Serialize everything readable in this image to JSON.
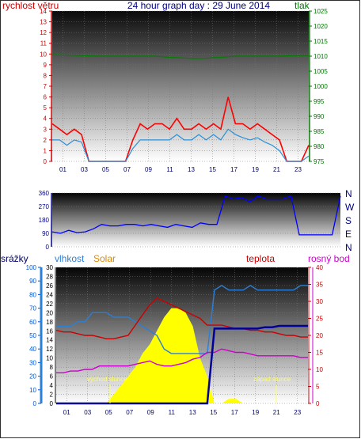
{
  "page": {
    "title": "24 hour graph day : 29 June 2014"
  },
  "chart_data": [
    {
      "id": "wind_pressure",
      "type": "line",
      "title": "24 hour graph day : 29 June 2014",
      "left_axis_label": "rychlost větru",
      "right_axis_label": "tlak",
      "left_axis": {
        "ylim": [
          0,
          14
        ],
        "ticks": [
          0,
          1,
          2,
          3,
          4,
          5,
          6,
          7,
          8,
          9,
          10,
          11,
          12,
          13,
          14
        ],
        "color": "#cc0000"
      },
      "right_axis": {
        "ylim": [
          975,
          1025
        ],
        "ticks": [
          975,
          980,
          985,
          990,
          995,
          1000,
          1005,
          1010,
          1015,
          1020,
          1025
        ],
        "color": "#007700"
      },
      "x_ticks": [
        "01",
        "03",
        "05",
        "07",
        "09",
        "11",
        "13",
        "15",
        "17",
        "19",
        "21",
        "23"
      ],
      "grid": true,
      "series": [
        {
          "key": "gust",
          "color": "#ff0000",
          "values": [
            3.5,
            3,
            2.5,
            3,
            2.5,
            0,
            0,
            0,
            0,
            0,
            0,
            2,
            3.5,
            3,
            3.5,
            3.5,
            3,
            4,
            3,
            3,
            3.5,
            3,
            3.5,
            3,
            6,
            3.5,
            3.5,
            3,
            3.5,
            3,
            2.5,
            2,
            0,
            0,
            0,
            1.5
          ]
        },
        {
          "key": "speed",
          "color": "#2b8fd6",
          "values": [
            2,
            2,
            1.5,
            2,
            1.8,
            0,
            0,
            0,
            0,
            0,
            0,
            1.2,
            2,
            2,
            2,
            2,
            2,
            2.5,
            2,
            2,
            2.5,
            2,
            2.5,
            2,
            3,
            2.5,
            2.2,
            2,
            2.2,
            1.8,
            1.5,
            1,
            0,
            0,
            0,
            0.5
          ]
        },
        {
          "key": "pressure",
          "color": "#008000",
          "axis": "right",
          "values": [
            1010.5,
            1010.5,
            1010.4,
            1010.3,
            1010.2,
            1010.1,
            1010,
            1010,
            1010,
            1010,
            1010,
            1010,
            1010,
            1010,
            1010,
            1009.8,
            1009.6,
            1009.5,
            1009.4,
            1009.2,
            1009.2,
            1009.3,
            1009.5,
            1009.6,
            1009.8,
            1010,
            1010,
            1010,
            1010,
            1010,
            1010,
            1010,
            1010.1,
            1010.2,
            1010.2,
            1010.2
          ]
        }
      ]
    },
    {
      "id": "direction",
      "type": "line",
      "left_axis": {
        "ylim": [
          0,
          360
        ],
        "ticks": [
          0,
          90,
          180,
          270,
          360
        ],
        "color": "#000088"
      },
      "right_axis_labels": [
        "N",
        "W",
        "S",
        "E",
        "N"
      ],
      "series": [
        {
          "key": "direction",
          "color": "#0000ff",
          "values": [
            100,
            90,
            110,
            95,
            100,
            120,
            150,
            140,
            140,
            150,
            150,
            140,
            150,
            140,
            130,
            150,
            140,
            130,
            160,
            150,
            150,
            340,
            320,
            330,
            300,
            340,
            320,
            320,
            320,
            340,
            80,
            80,
            80,
            80,
            80,
            340
          ]
        }
      ]
    },
    {
      "id": "humidity_temp",
      "type": "line",
      "left_axis_labels": [
        "srážky",
        "vlhkost",
        "Solar"
      ],
      "right_axis_labels": [
        "teplota",
        "rosný bod"
      ],
      "rain_axis": {
        "ylim": [
          0,
          100
        ],
        "ticks": [
          0,
          10,
          20,
          30,
          40,
          50,
          60,
          70,
          80,
          90,
          100
        ],
        "color": "#0055cc"
      },
      "humidity_axis": {
        "ylim": [
          0,
          30
        ],
        "ticks": [
          0,
          2,
          4,
          6,
          8,
          10,
          12,
          14,
          16,
          18,
          20,
          22,
          24,
          26,
          28,
          30
        ],
        "color": "#000000"
      },
      "temp_axis": {
        "ylim": [
          0,
          40
        ],
        "ticks": [
          0,
          5,
          10,
          15,
          20,
          25,
          30,
          35,
          40
        ],
        "color": "#cc0000"
      },
      "x_ticks": [
        "01",
        "03",
        "05",
        "07",
        "09",
        "11",
        "13",
        "15",
        "17",
        "19",
        "21",
        "23"
      ],
      "annotations": [
        "východ slunce",
        "západ slunce"
      ],
      "series": [
        {
          "key": "humidity",
          "color": "#2b7fd8",
          "values": [
            17,
            17,
            17,
            18,
            18,
            20,
            20,
            20,
            19,
            19,
            19,
            18,
            17,
            16,
            15,
            12,
            11,
            11,
            11,
            11,
            11,
            11,
            25,
            26,
            25,
            25,
            25,
            26,
            25,
            25,
            25,
            25,
            25,
            25,
            26,
            26
          ]
        },
        {
          "key": "temperature",
          "color": "#cc0000",
          "values": [
            21.5,
            21,
            21,
            20.5,
            20,
            20,
            19.5,
            19,
            19,
            19.5,
            20,
            23,
            26,
            29,
            31,
            30,
            29,
            28,
            27,
            26,
            25,
            23,
            23,
            23,
            22.5,
            22,
            22,
            21.5,
            21.5,
            21,
            21,
            20.5,
            20,
            20,
            19.5,
            19.5
          ]
        },
        {
          "key": "dewpoint",
          "color": "#cc00cc",
          "values": [
            9,
            9,
            9.5,
            9.5,
            10,
            10,
            11,
            11,
            11,
            11,
            11,
            11.5,
            12,
            12.5,
            11.5,
            11,
            11,
            11.5,
            12,
            13,
            13.5,
            15,
            15,
            16,
            15.5,
            15,
            15,
            14.5,
            14,
            14,
            14,
            14,
            14,
            14,
            13.5,
            13.5
          ]
        },
        {
          "key": "rain_total",
          "color": "#000099",
          "values": [
            0,
            0,
            0,
            0,
            0,
            0,
            0,
            0,
            0,
            0,
            0,
            0,
            0,
            0,
            0,
            0,
            0,
            0,
            0,
            0,
            0,
            0,
            55,
            55,
            55,
            55,
            55,
            55,
            55,
            56,
            56,
            57,
            57,
            57,
            57,
            57
          ]
        },
        {
          "key": "solar",
          "color": "#ffff00",
          "values": [
            0,
            0,
            0,
            0,
            0,
            0,
            0,
            0,
            2,
            4,
            6,
            8,
            11,
            13,
            16,
            19,
            21,
            21,
            20,
            17,
            10,
            6,
            0,
            0,
            1,
            1,
            0,
            0,
            0,
            0,
            0,
            0,
            0,
            0,
            0,
            0
          ]
        }
      ]
    }
  ]
}
